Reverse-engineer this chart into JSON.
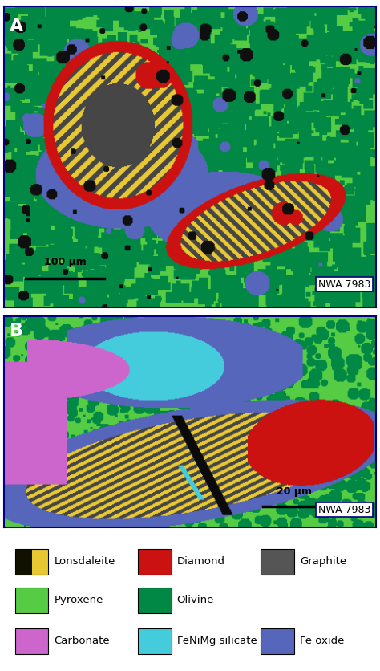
{
  "fig_width": 4.74,
  "fig_height": 8.36,
  "dpi": 100,
  "panel_A_label": "A",
  "panel_B_label": "B",
  "scale_A_text": "100 μm",
  "scale_B_text": "20 μm",
  "watermark_A": "NWA 7983",
  "watermark_B": "NWA 7983",
  "legend_items": [
    {
      "label": "Lonsdaleite",
      "color": "#e8c832",
      "edge_color": "#222200"
    },
    {
      "label": "Diamond",
      "color": "#cc1111"
    },
    {
      "label": "Graphite",
      "color": "#555555"
    },
    {
      "label": "Pyroxene",
      "color": "#55cc44"
    },
    {
      "label": "Olivine",
      "color": "#008844"
    },
    {
      "label": "Carbonate",
      "color": "#cc66cc"
    },
    {
      "label": "FeNiMg silicate",
      "color": "#44ccdd"
    },
    {
      "label": "Fe oxide",
      "color": "#5566bb"
    }
  ],
  "bg_color": "#ffffff"
}
